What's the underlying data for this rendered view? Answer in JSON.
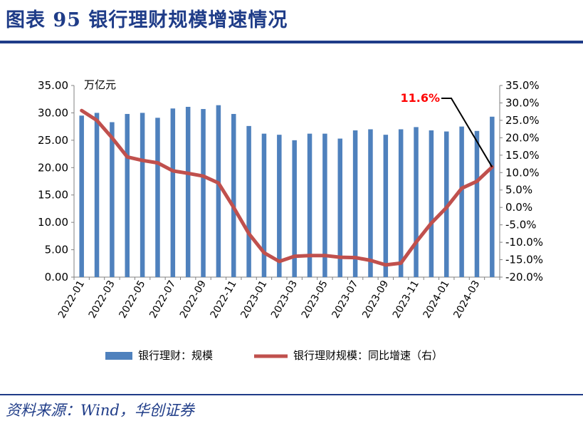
{
  "header": {
    "title": "图表 95   银行理财规模增速情况"
  },
  "footer": {
    "source": "资料来源：Wind，华创证券"
  },
  "colors": {
    "bar": "#4f81bd",
    "line": "#c0504d",
    "accent": "#1f3c88",
    "annotation": "#ff0000"
  },
  "chart_data": {
    "type": "bar",
    "title": "银行理财规模增速情况",
    "unit_label": "万亿元",
    "categories": [
      "2022-01",
      "2022-02",
      "2022-03",
      "2022-04",
      "2022-05",
      "2022-06",
      "2022-07",
      "2022-08",
      "2022-09",
      "2022-10",
      "2022-11",
      "2022-12",
      "2023-01",
      "2023-02",
      "2023-03",
      "2023-04",
      "2023-05",
      "2023-06",
      "2023-07",
      "2023-08",
      "2023-09",
      "2023-10",
      "2023-11",
      "2023-12",
      "2024-01",
      "2024-02",
      "2024-03",
      "2024-04"
    ],
    "x_tick_labels": [
      "2022-01",
      "2022-03",
      "2022-05",
      "2022-07",
      "2022-09",
      "2022-11",
      "2023-01",
      "2023-03",
      "2023-05",
      "2023-07",
      "2023-09",
      "2023-11",
      "2024-01",
      "2024-03"
    ],
    "series": [
      {
        "name": "银行理财：规模",
        "type": "bar",
        "axis": "left",
        "values": [
          29.5,
          30.0,
          28.3,
          29.8,
          30.0,
          29.1,
          30.8,
          31.1,
          30.7,
          31.4,
          29.8,
          27.6,
          26.2,
          26.0,
          25.0,
          26.2,
          26.2,
          25.3,
          26.8,
          27.0,
          26.0,
          27.0,
          27.4,
          26.8,
          26.6,
          27.5,
          26.7,
          29.3
        ]
      },
      {
        "name": "银行理财规模：同比增速（右）",
        "type": "line",
        "axis": "right",
        "values": [
          27.8,
          25.0,
          20.0,
          14.5,
          13.5,
          12.8,
          10.5,
          9.8,
          9.0,
          7.0,
          0.0,
          -7.5,
          -13.0,
          -15.5,
          -14.0,
          -13.8,
          -13.8,
          -14.3,
          -14.4,
          -15.2,
          -16.5,
          -16.0,
          -10.0,
          -4.5,
          0.0,
          5.5,
          7.5,
          11.6
        ]
      }
    ],
    "y_left": {
      "min": 0,
      "max": 35,
      "step": 5,
      "tick_labels": [
        "0.00",
        "5.00",
        "10.00",
        "15.00",
        "20.00",
        "25.00",
        "30.00",
        "35.00"
      ]
    },
    "y_right": {
      "min": -20,
      "max": 35,
      "step": 5,
      "tick_labels": [
        "-20.0%",
        "-15.0%",
        "-10.0%",
        "-5.0%",
        "0.0%",
        "5.0%",
        "10.0%",
        "15.0%",
        "20.0%",
        "25.0%",
        "30.0%",
        "35.0%"
      ]
    },
    "annotation": {
      "text": "11.6%",
      "category": "2024-04",
      "value": 11.6
    },
    "legend": {
      "position": "bottom",
      "items": [
        "银行理财：规模",
        "银行理财规模：同比增速（右）"
      ]
    }
  }
}
